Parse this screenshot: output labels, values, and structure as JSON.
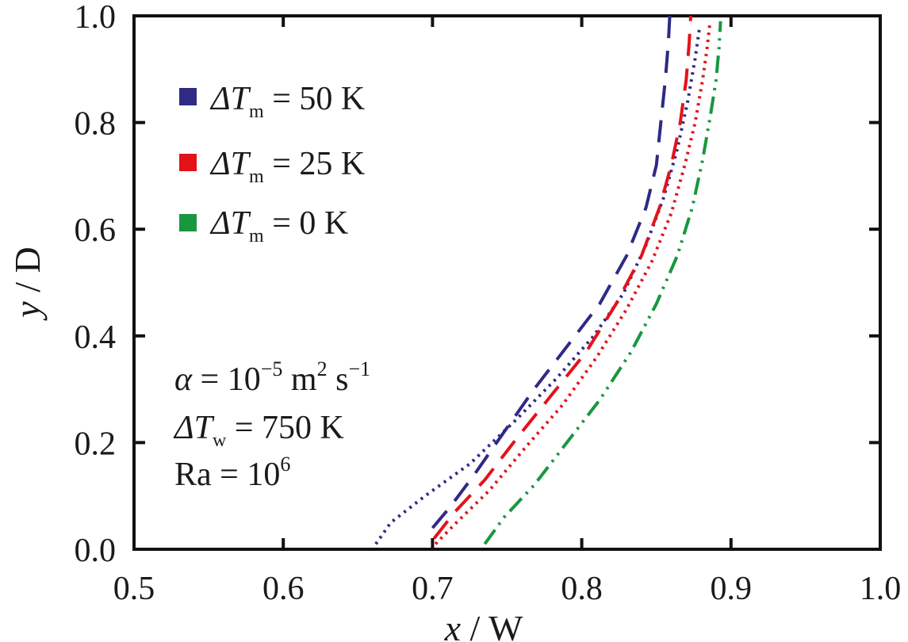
{
  "chart_data": {
    "type": "line",
    "xlabel": "x",
    "xlabel_unit": " / W",
    "ylabel": "y",
    "ylabel_unit": " / D",
    "xlim": [
      0.5,
      1.0
    ],
    "ylim": [
      0.0,
      1.0
    ],
    "xticks": [
      "0.5",
      "0.6",
      "0.7",
      "0.8",
      "0.9",
      "1.0"
    ],
    "yticks": [
      "0.0",
      "0.2",
      "0.4",
      "0.6",
      "0.8",
      "1.0"
    ],
    "grid": false,
    "legend_position": "top-left",
    "legend": [
      {
        "prefix": "ΔT",
        "sub": "m",
        "suffix": " = 50 K",
        "color": "#2e2a85"
      },
      {
        "prefix": "ΔT",
        "sub": "m",
        "suffix": " = 25 K",
        "color": "#e3121b"
      },
      {
        "prefix": "ΔT",
        "sub": "m",
        "suffix": " = 0 K",
        "color": "#18973f"
      }
    ],
    "annotations": {
      "alpha": {
        "lhs": "α",
        "eq": " = 10",
        "exp1": "−5",
        "unit1": " m",
        "exp2": "2",
        "unit2": " s",
        "exp3": "−1"
      },
      "dtw": {
        "prefix": "ΔT",
        "sub": "w",
        "suffix": " = 750 K"
      },
      "ra": {
        "text": "Ra = 10",
        "exp": "6"
      }
    },
    "series": [
      {
        "name": "50K-dashed",
        "color": "#2e2a85",
        "dash": "28,16",
        "x": [
          0.7,
          0.712,
          0.728,
          0.748,
          0.768,
          0.79,
          0.812,
          0.83,
          0.843,
          0.85,
          0.853,
          0.856,
          0.858,
          0.859
        ],
        "y": [
          0.04,
          0.08,
          0.14,
          0.22,
          0.3,
          0.38,
          0.46,
          0.55,
          0.64,
          0.72,
          0.8,
          0.88,
          0.95,
          1.0
        ]
      },
      {
        "name": "50K-dotted",
        "color": "#2e2a85",
        "dash": "3,6",
        "x": [
          0.662,
          0.672,
          0.695,
          0.725,
          0.755,
          0.783,
          0.808,
          0.828,
          0.843,
          0.855,
          0.864,
          0.871,
          0.876,
          0.879
        ],
        "y": [
          0.01,
          0.05,
          0.1,
          0.16,
          0.24,
          0.32,
          0.4,
          0.48,
          0.57,
          0.66,
          0.75,
          0.84,
          0.92,
          0.98
        ]
      },
      {
        "name": "25K-dashed",
        "color": "#e3121b",
        "dash": "28,16",
        "x": [
          0.701,
          0.715,
          0.735,
          0.757,
          0.78,
          0.803,
          0.823,
          0.84,
          0.852,
          0.86,
          0.866,
          0.87,
          0.872,
          0.873
        ],
        "y": [
          0.02,
          0.07,
          0.13,
          0.21,
          0.29,
          0.37,
          0.46,
          0.55,
          0.64,
          0.72,
          0.8,
          0.88,
          0.95,
          1.0
        ]
      },
      {
        "name": "25K-dotted",
        "color": "#e3121b",
        "dash": "3,6",
        "x": [
          0.702,
          0.716,
          0.738,
          0.762,
          0.787,
          0.81,
          0.83,
          0.847,
          0.86,
          0.869,
          0.876,
          0.881,
          0.884,
          0.886
        ],
        "y": [
          0.01,
          0.05,
          0.11,
          0.19,
          0.27,
          0.36,
          0.45,
          0.54,
          0.63,
          0.72,
          0.8,
          0.88,
          0.94,
          0.99
        ]
      },
      {
        "name": "0K-dashdot",
        "color": "#18973f",
        "dash": "22,8,3,8,3,8",
        "x": [
          0.735,
          0.748,
          0.768,
          0.79,
          0.812,
          0.833,
          0.85,
          0.864,
          0.874,
          0.881,
          0.886,
          0.89,
          0.892,
          0.893
        ],
        "y": [
          0.01,
          0.06,
          0.12,
          0.2,
          0.28,
          0.37,
          0.46,
          0.55,
          0.64,
          0.73,
          0.81,
          0.88,
          0.94,
          0.99
        ]
      }
    ]
  }
}
